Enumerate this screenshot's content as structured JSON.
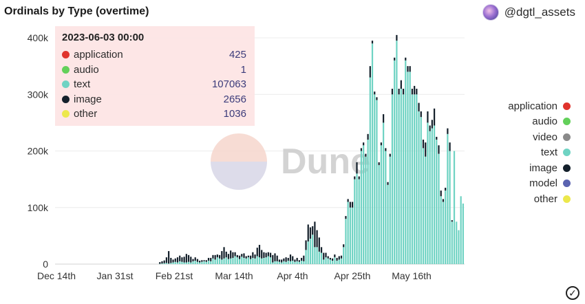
{
  "header": {
    "title": "Ordinals by Type (overtime)",
    "brand": "@dgtl_assets"
  },
  "watermark": "Dune",
  "tooltip": {
    "date": "2023-06-03 00:00",
    "rows": [
      {
        "name": "application",
        "value": "425",
        "color": "#e0332c"
      },
      {
        "name": "audio",
        "value": "1",
        "color": "#63d05a"
      },
      {
        "name": "text",
        "value": "107063",
        "color": "#6fd3c3"
      },
      {
        "name": "image",
        "value": "2656",
        "color": "#14202b"
      },
      {
        "name": "other",
        "value": "1036",
        "color": "#ece84b"
      }
    ]
  },
  "chart_data": {
    "type": "bar",
    "stacked": true,
    "x_tick_labels": [
      "Dec 14th",
      "Jan 31st",
      "Feb 21st",
      "Mar 14th",
      "Apr 4th",
      "Apr 25th",
      "May 16th"
    ],
    "y_tick_labels": [
      "0",
      "100k",
      "200k",
      "300k",
      "400k"
    ],
    "ylim": [
      0,
      400000
    ],
    "grid": true,
    "legend_position": "right",
    "legend": [
      {
        "name": "application",
        "color": "#e0332c"
      },
      {
        "name": "audio",
        "color": "#63d05a"
      },
      {
        "name": "video",
        "color": "#8a8a8a"
      },
      {
        "name": "text",
        "color": "#6fd3c3"
      },
      {
        "name": "image",
        "color": "#14202b"
      },
      {
        "name": "model",
        "color": "#5a63b0"
      },
      {
        "name": "other",
        "color": "#ece84b"
      }
    ],
    "series_order": [
      "text",
      "image",
      "other"
    ],
    "series": [
      {
        "name": "text",
        "values": [
          0,
          0,
          0,
          0,
          0,
          0,
          0,
          0,
          0,
          0,
          0,
          0,
          0,
          0,
          0,
          0,
          0,
          0,
          0,
          0,
          0,
          0,
          0,
          0,
          0,
          0,
          0,
          0,
          0,
          0,
          0,
          0,
          0,
          0,
          0,
          0,
          0,
          0,
          0,
          0,
          0,
          0,
          0,
          0,
          0,
          0,
          0,
          500,
          1000,
          1500,
          2000,
          1000,
          2000,
          3000,
          4000,
          3000,
          5000,
          4000,
          3000,
          3000,
          4000,
          3000,
          5000,
          6000,
          4000,
          3000,
          4000,
          5000,
          4000,
          6000,
          5000,
          10000,
          8000,
          12000,
          10000,
          8000,
          10000,
          12000,
          9000,
          10000,
          11000,
          14000,
          12000,
          9000,
          13000,
          11000,
          10000,
          12000,
          9000,
          11000,
          10000,
          14000,
          12000,
          10000,
          11000,
          12000,
          14000,
          12000,
          3000,
          5000,
          5000,
          4000,
          3000,
          5000,
          4000,
          6000,
          5000,
          6000,
          4000,
          5000,
          4000,
          6000,
          5000,
          25000,
          40000,
          45000,
          52000,
          30000,
          30000,
          22000,
          20000,
          8000,
          12000,
          10000,
          8000,
          6000,
          12000,
          6000,
          8000,
          10000,
          30000,
          80000,
          110000,
          100000,
          100000,
          150000,
          160000,
          150000,
          200000,
          210000,
          190000,
          220000,
          330000,
          390000,
          300000,
          290000,
          175000,
          210000,
          250000,
          200000,
          140000,
          190000,
          300000,
          360000,
          395000,
          300000,
          310000,
          300000,
          360000,
          340000,
          340000,
          300000,
          300000,
          300000,
          270000,
          260000,
          205000,
          190000,
          250000,
          235000,
          240000,
          245000,
          220000,
          195000,
          120000,
          110000,
          130000,
          230000,
          200000,
          75000,
          200000,
          75000,
          60000,
          120000,
          107063
        ]
      },
      {
        "name": "image",
        "values": [
          0,
          0,
          0,
          0,
          0,
          0,
          0,
          0,
          0,
          0,
          0,
          0,
          0,
          0,
          0,
          0,
          0,
          0,
          0,
          0,
          0,
          0,
          0,
          0,
          0,
          0,
          0,
          0,
          0,
          0,
          0,
          0,
          0,
          0,
          0,
          0,
          0,
          0,
          0,
          0,
          0,
          0,
          0,
          0,
          0,
          0,
          0,
          3000,
          4000,
          5000,
          10000,
          22000,
          9000,
          5000,
          6000,
          9000,
          10000,
          8000,
          10000,
          15000,
          12000,
          10000,
          4000,
          6000,
          5000,
          3000,
          3000,
          2000,
          3000,
          5000,
          6000,
          6000,
          8000,
          5000,
          6000,
          15000,
          20000,
          10000,
          9000,
          14000,
          10000,
          7000,
          4000,
          6000,
          5000,
          8000,
          4000,
          3000,
          6000,
          10000,
          7000,
          15000,
          22000,
          15000,
          10000,
          8000,
          7000,
          8000,
          13000,
          14000,
          10000,
          4000,
          5000,
          5000,
          8000,
          5000,
          12000,
          8000,
          4000,
          6000,
          3000,
          5000,
          10000,
          17000,
          30000,
          20000,
          15000,
          45000,
          30000,
          25000,
          10000,
          12000,
          8000,
          4000,
          3000,
          4000,
          5000,
          5000,
          6000,
          5000,
          5000,
          5000,
          5000,
          10000,
          10000,
          5000,
          20000,
          5000,
          5000,
          5000,
          5000,
          10000,
          20000,
          5000,
          5000,
          5000,
          5000,
          5000,
          15000,
          5000,
          5000,
          5000,
          10000,
          5000,
          10000,
          10000,
          15000,
          10000,
          5000,
          10000,
          10000,
          10000,
          15000,
          10000,
          15000,
          10000,
          15000,
          25000,
          20000,
          10000,
          15000,
          30000,
          5000,
          15000,
          10000,
          5000,
          5000,
          10000,
          15000,
          2656
        ]
      },
      {
        "name": "other",
        "values": [
          0,
          0,
          0,
          0,
          0,
          0,
          0,
          0,
          0,
          0,
          0,
          0,
          0,
          0,
          0,
          0,
          0,
          0,
          0,
          0,
          0,
          0,
          0,
          0,
          0,
          0,
          0,
          0,
          0,
          0,
          0,
          0,
          0,
          0,
          0,
          0,
          0,
          0,
          0,
          0,
          0,
          0,
          0,
          0,
          0,
          0,
          0,
          0,
          0,
          0,
          0,
          0,
          0,
          0,
          0,
          0,
          0,
          0,
          0,
          0,
          0,
          0,
          0,
          0,
          0,
          0,
          0,
          0,
          0,
          0,
          0,
          0,
          0,
          0,
          0,
          0,
          0,
          0,
          0,
          0,
          0,
          0,
          0,
          0,
          0,
          0,
          0,
          0,
          0,
          0,
          0,
          0,
          0,
          0,
          0,
          0,
          0,
          0,
          0,
          0,
          0,
          0,
          0,
          0,
          0,
          0,
          0,
          0,
          0,
          0,
          0,
          0,
          0,
          0,
          0,
          0,
          0,
          0,
          0,
          0,
          0,
          0,
          0,
          0,
          0,
          0,
          0,
          0,
          0,
          0,
          0,
          0,
          0,
          0,
          0,
          0,
          0,
          0,
          0,
          0,
          0,
          0,
          0,
          0,
          0,
          0,
          0,
          0,
          0,
          0,
          0,
          0,
          0,
          0,
          0,
          0,
          0,
          0,
          0,
          0,
          0,
          0,
          0,
          0,
          0,
          0,
          0,
          0,
          0,
          0,
          0,
          0,
          0,
          0,
          0,
          0,
          0,
          0,
          0,
          0,
          0,
          0,
          0,
          0,
          0,
          0,
          0,
          0,
          0,
          0,
          0,
          0,
          1036
        ]
      }
    ]
  },
  "footer": {
    "check_glyph": "✓"
  }
}
